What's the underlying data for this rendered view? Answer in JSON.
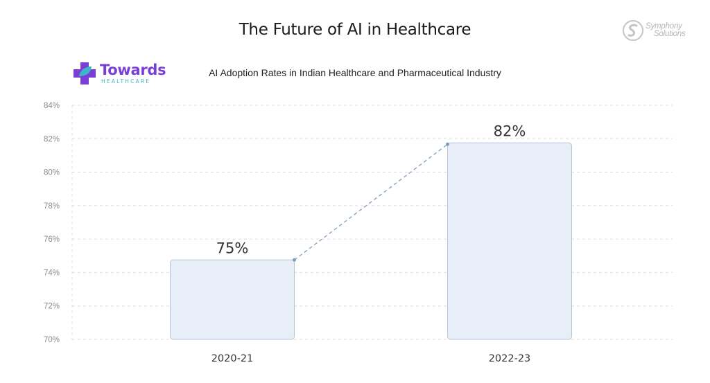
{
  "header": {
    "title": "The Future of AI in Healthcare"
  },
  "logos": {
    "towards": {
      "word": "Towards",
      "sub": "HEALTHCARE"
    },
    "symphony": {
      "line1": "Symphony",
      "line2": "Solutions"
    }
  },
  "colors": {
    "bar_fill": "#e8eef8",
    "bar_stroke": "#b9c4d2",
    "trend_line": "#7f9cc0",
    "grid": "#dcdcdc",
    "brand_purple": "#7a3fd6",
    "brand_teal": "#3fb6c8"
  },
  "chart_data": {
    "type": "bar",
    "title": "AI Adoption Rates in Indian Healthcare and Pharmaceutical Industry",
    "xlabel": "",
    "ylabel": "",
    "categories": [
      "2020-21",
      "2022-23"
    ],
    "values": [
      75,
      82
    ],
    "value_labels": [
      "75%",
      "82%"
    ],
    "ylim": [
      70,
      84
    ],
    "yticks": [
      70,
      72,
      74,
      76,
      78,
      80,
      82,
      84
    ],
    "ytick_labels": [
      "70%",
      "72%",
      "74%",
      "76%",
      "78%",
      "80%",
      "82%",
      "84%"
    ],
    "grid": true,
    "trend_line": "dashed",
    "legend": "none"
  }
}
